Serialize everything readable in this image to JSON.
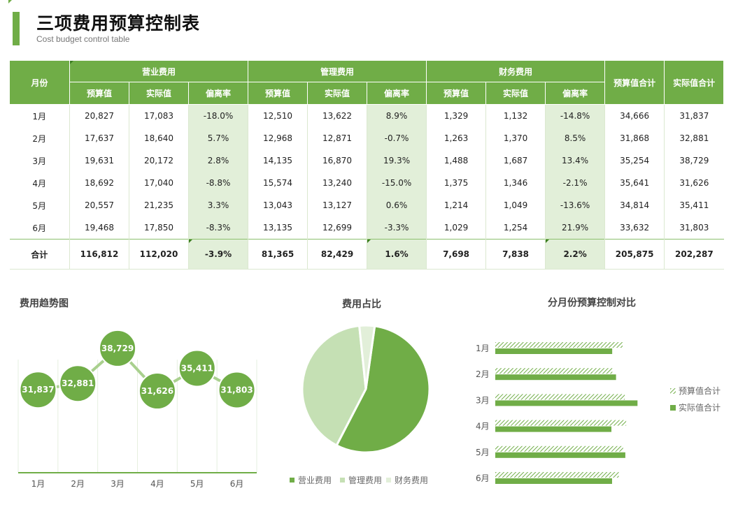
{
  "header": {
    "title": "三项费用预算控制表",
    "subtitle": "Cost budget control table"
  },
  "table": {
    "month_header": "月份",
    "groups": [
      "营业费用",
      "管理费用",
      "财务费用"
    ],
    "sub_headers": [
      "预算值",
      "实际值",
      "偏离率"
    ],
    "budget_total_header": "预算值合计",
    "actual_total_header": "实际值合计",
    "rows": [
      [
        "1月",
        "20,827",
        "17,083",
        "-18.0%",
        "12,510",
        "13,622",
        "8.9%",
        "1,329",
        "1,132",
        "-14.8%",
        "34,666",
        "31,837"
      ],
      [
        "2月",
        "17,637",
        "18,640",
        "5.7%",
        "12,968",
        "12,871",
        "-0.7%",
        "1,263",
        "1,370",
        "8.5%",
        "31,868",
        "32,881"
      ],
      [
        "3月",
        "19,631",
        "20,172",
        "2.8%",
        "14,135",
        "16,870",
        "19.3%",
        "1,488",
        "1,687",
        "13.4%",
        "35,254",
        "38,729"
      ],
      [
        "4月",
        "18,692",
        "17,040",
        "-8.8%",
        "15,574",
        "13,240",
        "-15.0%",
        "1,375",
        "1,346",
        "-2.1%",
        "35,641",
        "31,626"
      ],
      [
        "5月",
        "20,557",
        "21,235",
        "3.3%",
        "13,043",
        "13,127",
        "0.6%",
        "1,214",
        "1,049",
        "-13.6%",
        "34,814",
        "35,411"
      ],
      [
        "6月",
        "19,468",
        "17,850",
        "-8.3%",
        "13,135",
        "12,699",
        "-3.3%",
        "1,029",
        "1,254",
        "21.9%",
        "33,632",
        "31,803"
      ]
    ],
    "total_row": [
      "合计",
      "116,812",
      "112,020",
      "-3.9%",
      "81,365",
      "82,429",
      "1.6%",
      "7,698",
      "7,838",
      "2.2%",
      "205,875",
      "202,287"
    ]
  },
  "colors": {
    "accent": "#70ad47",
    "light": "#c5e0b4",
    "lighter": "#e2efd9"
  },
  "chart_data": [
    {
      "type": "line",
      "title": "费用趋势图",
      "categories": [
        "1月",
        "2月",
        "3月",
        "4月",
        "5月",
        "6月"
      ],
      "values": [
        31837,
        32881,
        38729,
        31626,
        35411,
        31803
      ],
      "labels": [
        "31,837",
        "32,881",
        "38,729",
        "31,626",
        "35,411",
        "31,803"
      ],
      "ylim": [
        25000,
        45000
      ]
    },
    {
      "type": "pie",
      "title": "费用占比",
      "labels": [
        "营业费用",
        "管理费用",
        "财务费用"
      ],
      "values": [
        112020,
        82429,
        7838
      ]
    },
    {
      "type": "bar",
      "title": "分月份预算控制对比",
      "categories": [
        "1月",
        "2月",
        "3月",
        "4月",
        "5月",
        "6月"
      ],
      "series": [
        {
          "name": "预算值合计",
          "values": [
            34666,
            31868,
            35254,
            35641,
            34814,
            33632
          ]
        },
        {
          "name": "实际值合计",
          "values": [
            31837,
            32881,
            38729,
            31626,
            35411,
            31803
          ]
        }
      ],
      "xlim": [
        0,
        40000
      ],
      "legend": "right"
    }
  ]
}
